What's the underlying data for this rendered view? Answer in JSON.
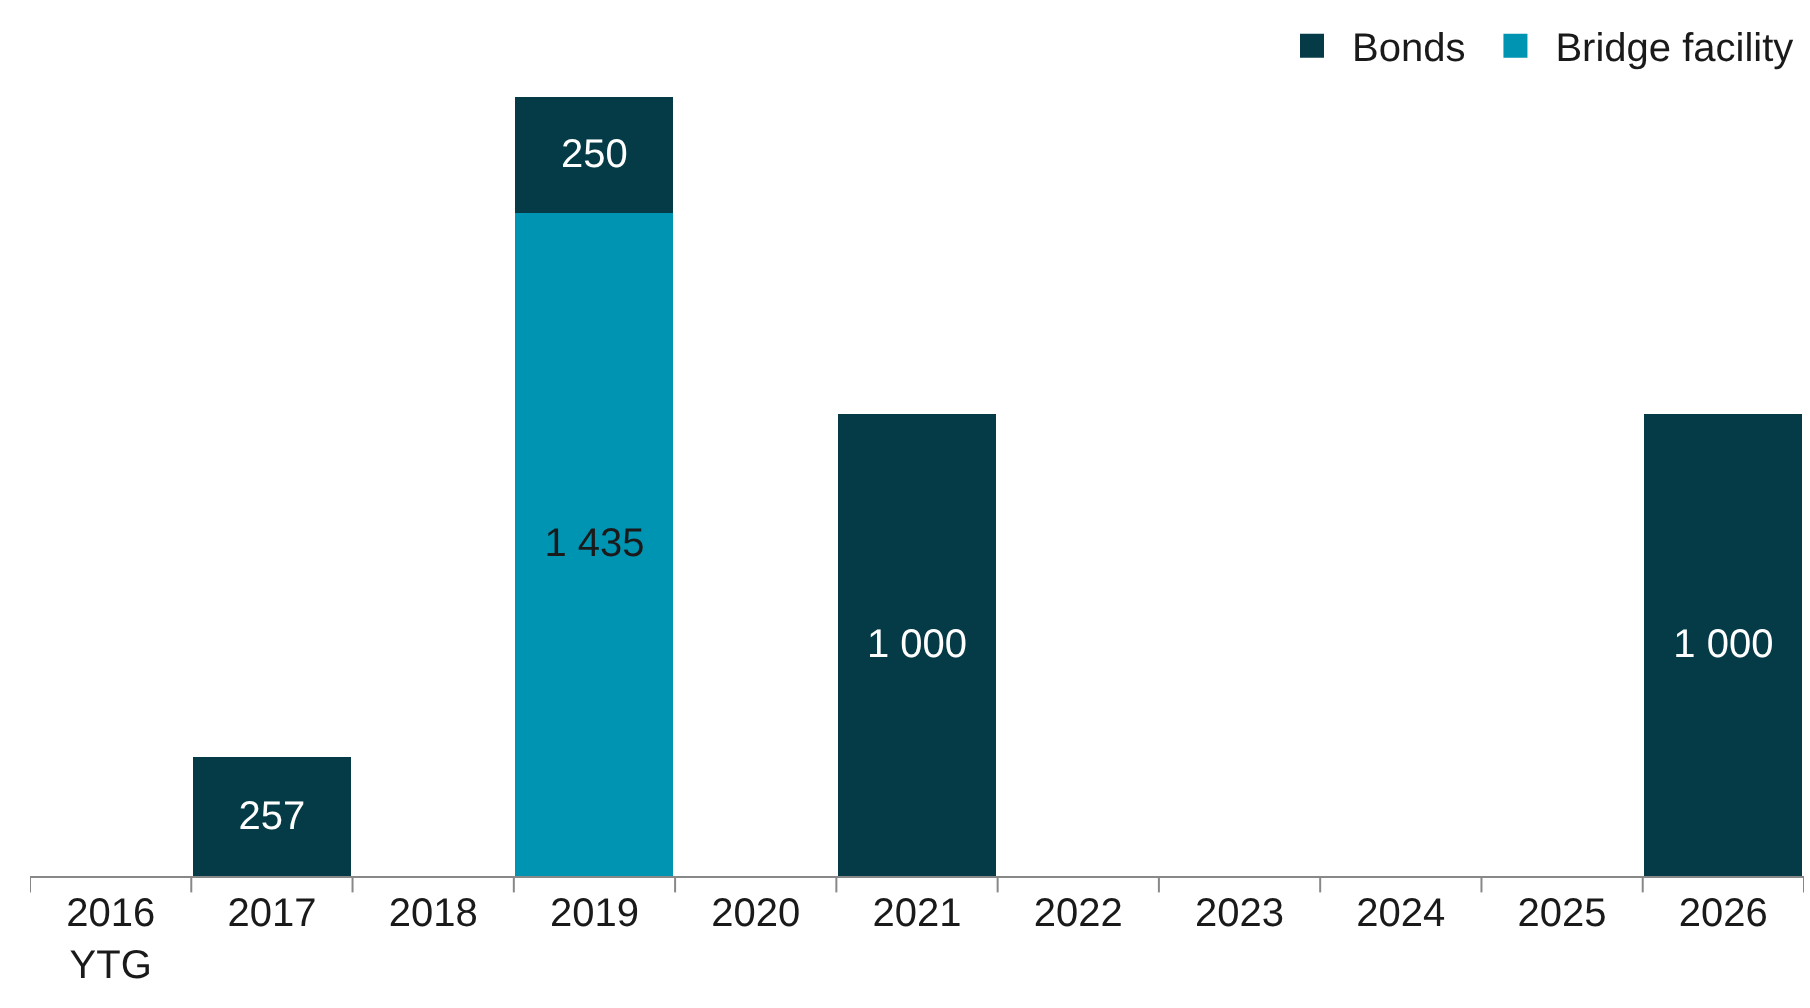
{
  "chart_data": {
    "type": "bar",
    "stacked": true,
    "legend": "top right",
    "categories": [
      "2016\nYTG",
      "2017",
      "2018",
      "2019",
      "2020",
      "2021",
      "2022",
      "2023",
      "2024",
      "2025",
      "2026"
    ],
    "series": [
      {
        "name": "Bridge facility",
        "color": "#0094b3",
        "values": [
          null,
          null,
          null,
          1435,
          null,
          null,
          null,
          null,
          null,
          null,
          null
        ],
        "value_labels": [
          null,
          null,
          null,
          "1 435",
          null,
          null,
          null,
          null,
          null,
          null,
          null
        ]
      },
      {
        "name": "Bonds",
        "color": "#053b47",
        "values": [
          null,
          257,
          null,
          250,
          null,
          1000,
          null,
          null,
          null,
          null,
          1000
        ],
        "value_labels": [
          null,
          "257",
          null,
          "250",
          null,
          "1 000",
          null,
          null,
          null,
          null,
          "1 000"
        ]
      }
    ]
  }
}
